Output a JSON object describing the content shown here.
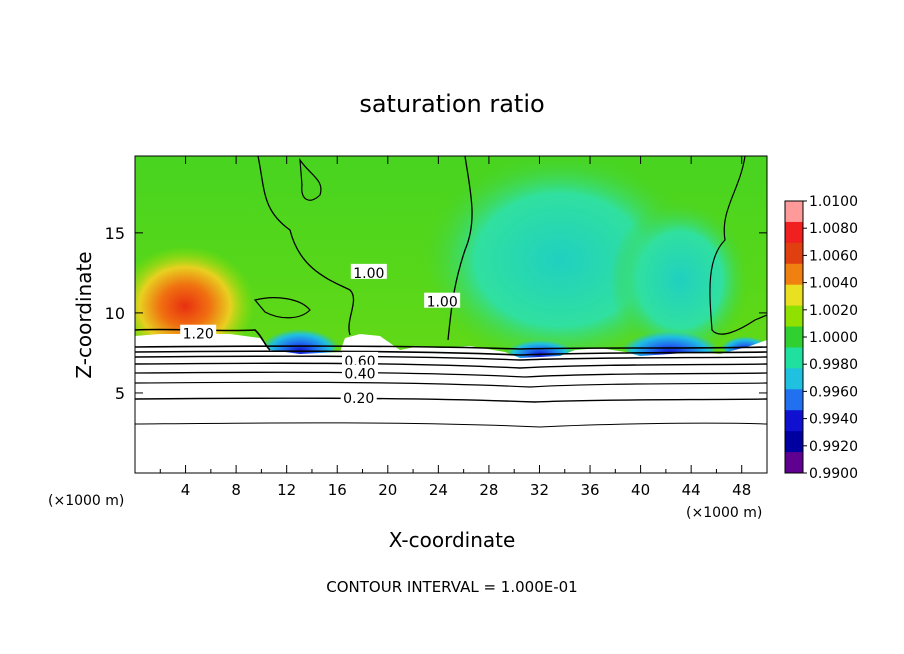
{
  "chart_data": {
    "type": "heatmap",
    "title": "saturation ratio",
    "xlabel": "X-coordinate",
    "ylabel": "Z-coordinate",
    "x_unit_left": "(×1000 m)",
    "x_unit_right": "(×1000 m)",
    "xlim": [
      0,
      50
    ],
    "ylim": [
      0,
      19.8
    ],
    "x_ticks": [
      "4",
      "8",
      "12",
      "16",
      "20",
      "24",
      "28",
      "32",
      "36",
      "40",
      "44",
      "48"
    ],
    "x_tick_values": [
      4,
      8,
      12,
      16,
      20,
      24,
      28,
      32,
      36,
      40,
      44,
      48
    ],
    "y_ticks": [
      "5",
      "10",
      "15"
    ],
    "y_tick_values": [
      5,
      10,
      15
    ],
    "footer": "CONTOUR INTERVAL = 1.000E-01",
    "colorbar": {
      "labels": [
        "1.0100",
        "1.0080",
        "1.0060",
        "1.0040",
        "1.0020",
        "1.0000",
        "0.9980",
        "0.9960",
        "0.9940",
        "0.9920",
        "0.9900"
      ],
      "colors": [
        "#ff9a9a",
        "#f02020",
        "#e04010",
        "#f08010",
        "#e8e020",
        "#90e000",
        "#30d030",
        "#20e0a0",
        "#20c0e0",
        "#2070f0",
        "#1010d0",
        "#0000a0",
        "#600090"
      ]
    },
    "contour_labels": [
      {
        "text": "1.20",
        "x": 5.0,
        "y": 8.7
      },
      {
        "text": "1.00",
        "x": 18.5,
        "y": 12.5
      },
      {
        "text": "1.00",
        "x": 24.3,
        "y": 10.7
      },
      {
        "text": "0.60",
        "x": 17.8,
        "y": 7.0
      },
      {
        "text": "0.40",
        "x": 17.8,
        "y": 6.2
      },
      {
        "text": "0.20",
        "x": 17.7,
        "y": 4.7
      }
    ]
  }
}
